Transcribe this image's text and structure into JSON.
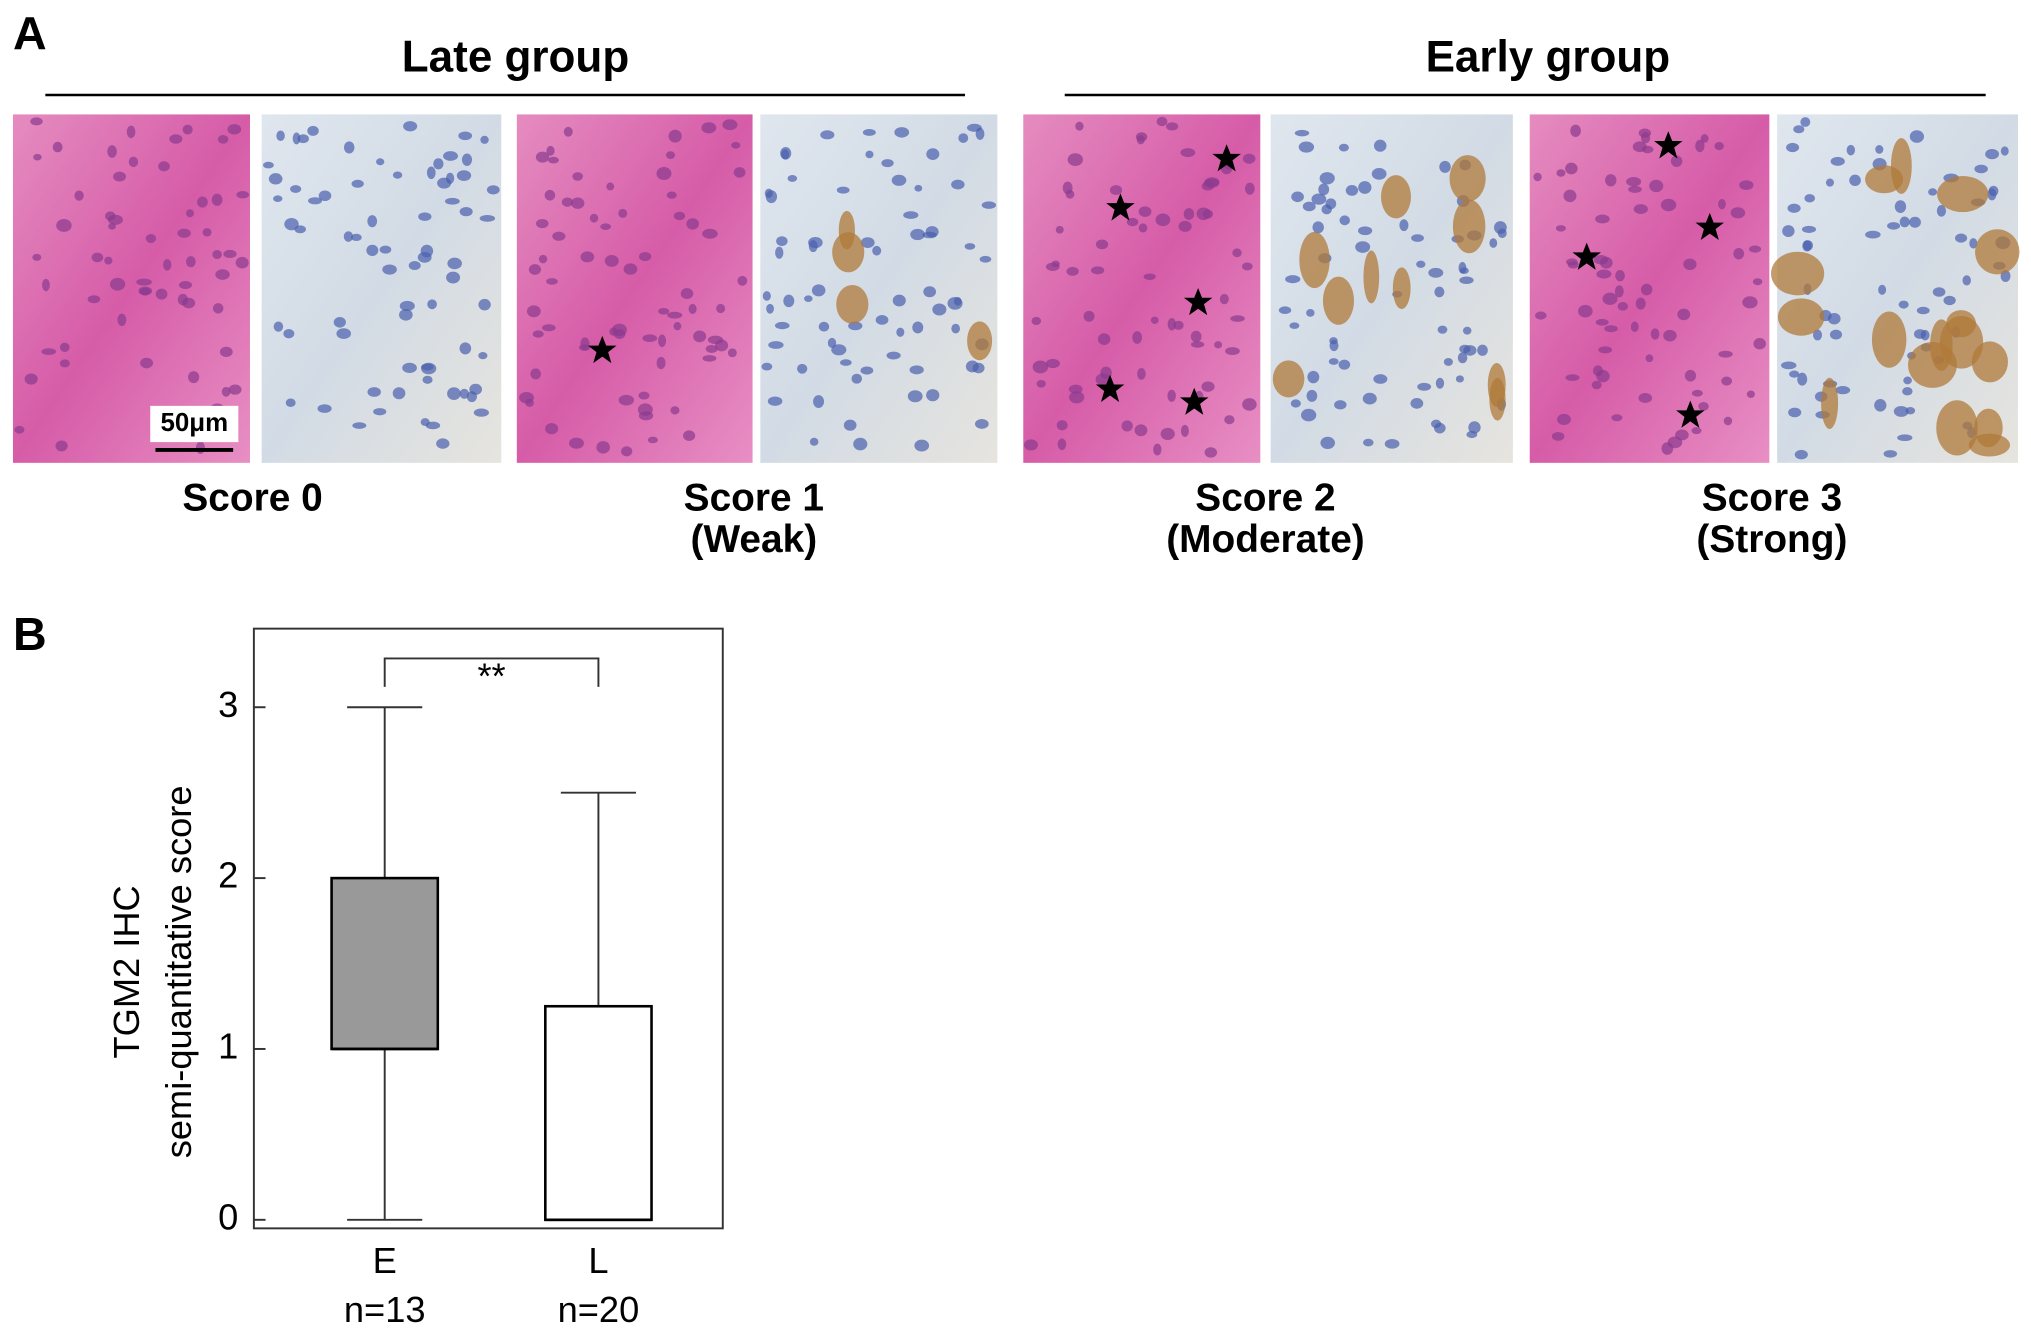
{
  "panel_a": {
    "label": "A",
    "groups": [
      {
        "title": "Late group"
      },
      {
        "title": "Early group"
      }
    ],
    "scale_bar": "50μm",
    "scores": [
      {
        "label": "Score 0"
      },
      {
        "label": "Score 1",
        "sublabel": "(Weak)"
      },
      {
        "label": "Score 2",
        "sublabel": "(Moderate)"
      },
      {
        "label": "Score 3",
        "sublabel": "(Strong)"
      }
    ]
  },
  "chart_data": {
    "type": "box",
    "panel_label": "B",
    "y_label": [
      "TGM2 IHC",
      "semi-quantitative score"
    ],
    "categories": [
      "E",
      "L"
    ],
    "n_labels": [
      "n=13",
      "n=20"
    ],
    "boxes": [
      {
        "color": "#999999",
        "min": 0,
        "q1": 1,
        "median": 1,
        "q3": 2,
        "max": 3
      },
      {
        "color": "#ffffff",
        "min": 0,
        "q1": 0,
        "median": 0,
        "q3": 1.25,
        "max": 2.5
      }
    ],
    "significance": "**",
    "ylim": [
      -0.05,
      3.46
    ],
    "yticks": [
      0,
      1,
      2,
      3
    ]
  }
}
